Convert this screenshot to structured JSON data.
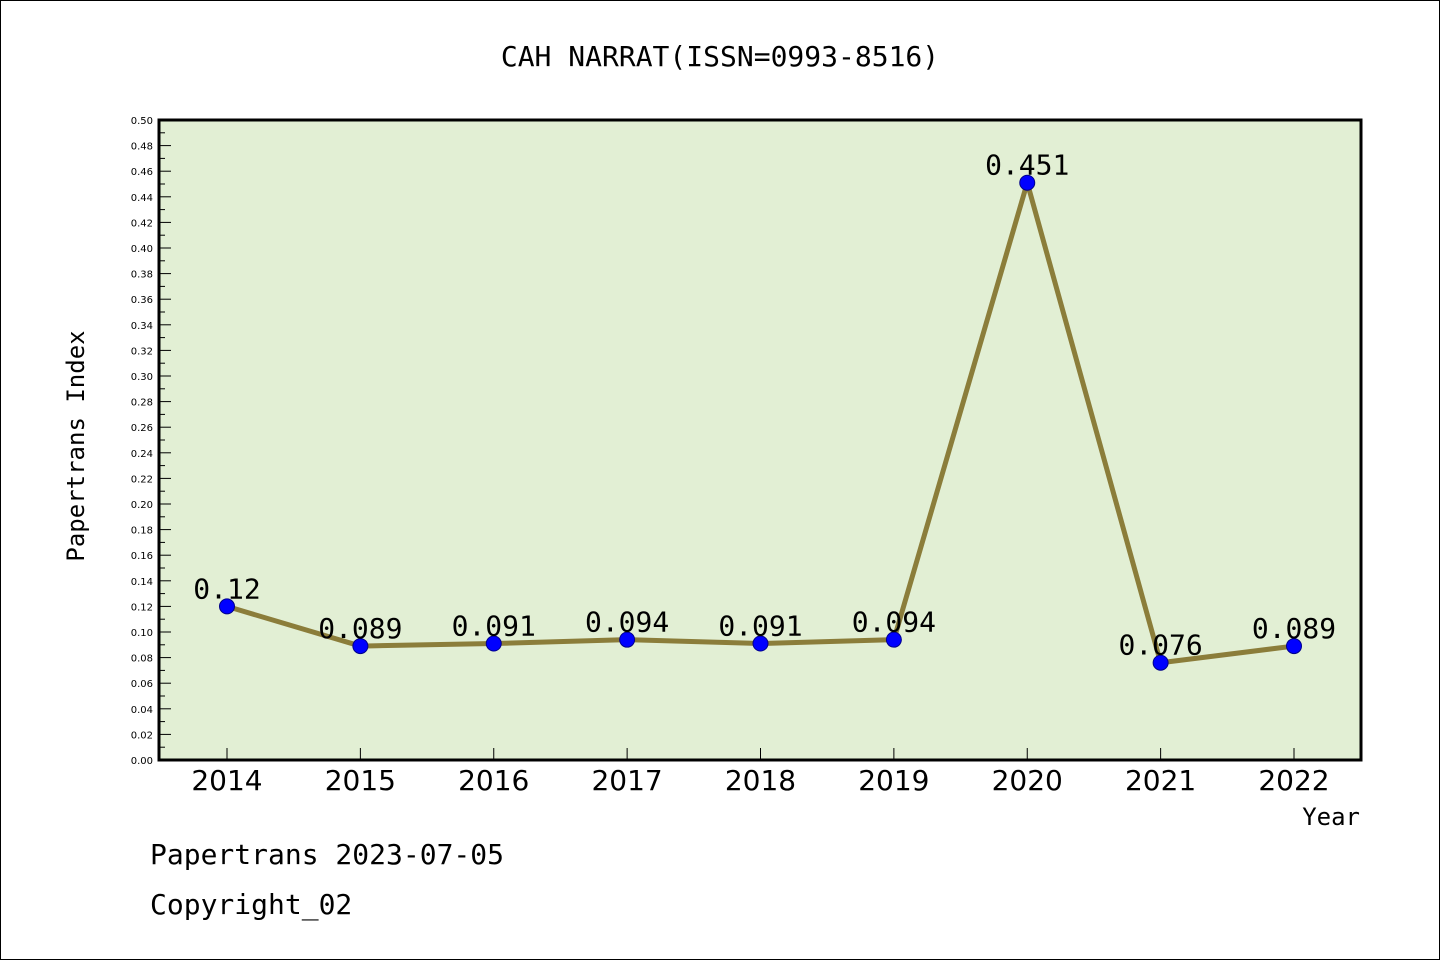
{
  "chart_data": {
    "type": "line",
    "title": "CAH NARRAT(ISSN=0993-8516)",
    "xlabel": "Year",
    "ylabel": "Papertrans Index",
    "categories": [
      "2014",
      "2015",
      "2016",
      "2017",
      "2018",
      "2019",
      "2020",
      "2021",
      "2022"
    ],
    "values": [
      0.12,
      0.089,
      0.091,
      0.094,
      0.091,
      0.094,
      0.451,
      0.076,
      0.089
    ],
    "data_labels": [
      "0.12",
      "0.089",
      "0.091",
      "0.094",
      "0.091",
      "0.094",
      "0.451",
      "0.076",
      "0.089"
    ],
    "ylim": [
      0,
      0.5
    ],
    "yticks": [
      "0.00",
      "0.02",
      "0.04",
      "0.06",
      "0.08",
      "0.10",
      "0.12",
      "0.14",
      "0.16",
      "0.18",
      "0.20",
      "0.22",
      "0.24",
      "0.26",
      "0.28",
      "0.30",
      "0.32",
      "0.34",
      "0.36",
      "0.38",
      "0.40",
      "0.42",
      "0.44",
      "0.46",
      "0.48",
      "0.50"
    ],
    "grid": false,
    "colors": {
      "plot_background": "#e2efd4",
      "line": "#8b7d3a",
      "marker": "#0000ff"
    }
  },
  "footer": {
    "line1": "Papertrans 2023-07-05",
    "line2": "Copyright_02"
  }
}
